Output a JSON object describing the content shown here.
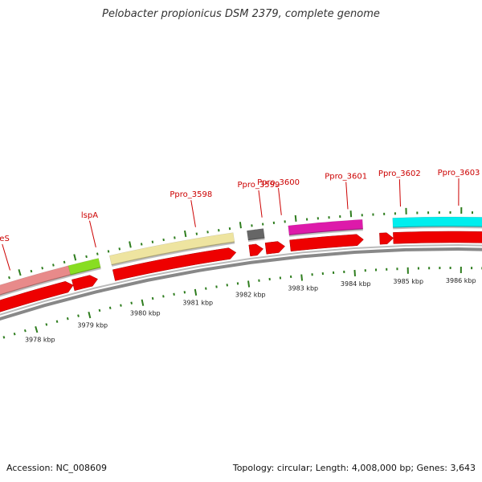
{
  "title": "Pelobacter propionicus DSM 2379, complete genome",
  "colors": {
    "gene_label": "#cc0000",
    "cds": "#ee0000",
    "backbone": "#888888",
    "tick": "#2e7d1e"
  },
  "genes": [
    {
      "label": "ileS",
      "color": "#e88a8a",
      "start_kbp": 3975.0,
      "end_kbp": 3978.85,
      "label_kbp": 3977.85
    },
    {
      "label": "lspA",
      "color": "#88dd22",
      "start_kbp": 3978.85,
      "end_kbp": 3979.4,
      "label_kbp": 3979.4
    },
    {
      "label": "Ppro_3598",
      "color": "#eee4a0",
      "start_kbp": 3979.6,
      "end_kbp": 3981.85,
      "label_kbp": 3981.2
    },
    {
      "label": "Ppro_3599",
      "color": "#666666",
      "start_kbp": 3982.1,
      "end_kbp": 3982.4,
      "label_kbp": 3982.4
    },
    {
      "label": "Ppro_3600",
      "color": "#dd1aaa",
      "start_kbp": 3982.85,
      "end_kbp": 3984.2,
      "label_kbp": 3982.75
    },
    {
      "label": "Ppro_3601",
      "color": "#ffffff",
      "start_kbp": 3984.2,
      "end_kbp": 3984.2,
      "label_kbp": 3983.95
    },
    {
      "label": "Ppro_3602",
      "color": "#ffffff",
      "start_kbp": 3984.9,
      "end_kbp": 3984.9,
      "label_kbp": 3984.9
    },
    {
      "label": "Ppro_3603",
      "color": "#00eeee",
      "start_kbp": 3984.75,
      "end_kbp": 3986.6,
      "label_kbp": 3985.95
    }
  ],
  "cds_arrows": [
    {
      "start_kbp": 3975.0,
      "end_kbp": 3978.85
    },
    {
      "start_kbp": 3978.85,
      "end_kbp": 3979.3
    },
    {
      "start_kbp": 3979.6,
      "end_kbp": 3981.85
    },
    {
      "start_kbp": 3982.1,
      "end_kbp": 3982.35
    },
    {
      "start_kbp": 3982.4,
      "end_kbp": 3982.75
    },
    {
      "start_kbp": 3982.85,
      "end_kbp": 3984.2
    },
    {
      "start_kbp": 3984.5,
      "end_kbp": 3984.75
    },
    {
      "start_kbp": 3984.75,
      "end_kbp": 3986.6
    }
  ],
  "scale_labels": [
    "3978 kbp",
    "3979 kbp",
    "3980 kbp",
    "3981 kbp",
    "3982 kbp",
    "3983 kbp",
    "3984 kbp",
    "3985 kbp",
    "3986 kbp"
  ],
  "scale_kbp": [
    3978,
    3979,
    3980,
    3981,
    3982,
    3983,
    3984,
    3985,
    3986
  ],
  "footer": {
    "accession": "Accession: NC_008609",
    "summary": "Topology: circular; Length: 4,008,000 bp; Genes: 3,643"
  }
}
